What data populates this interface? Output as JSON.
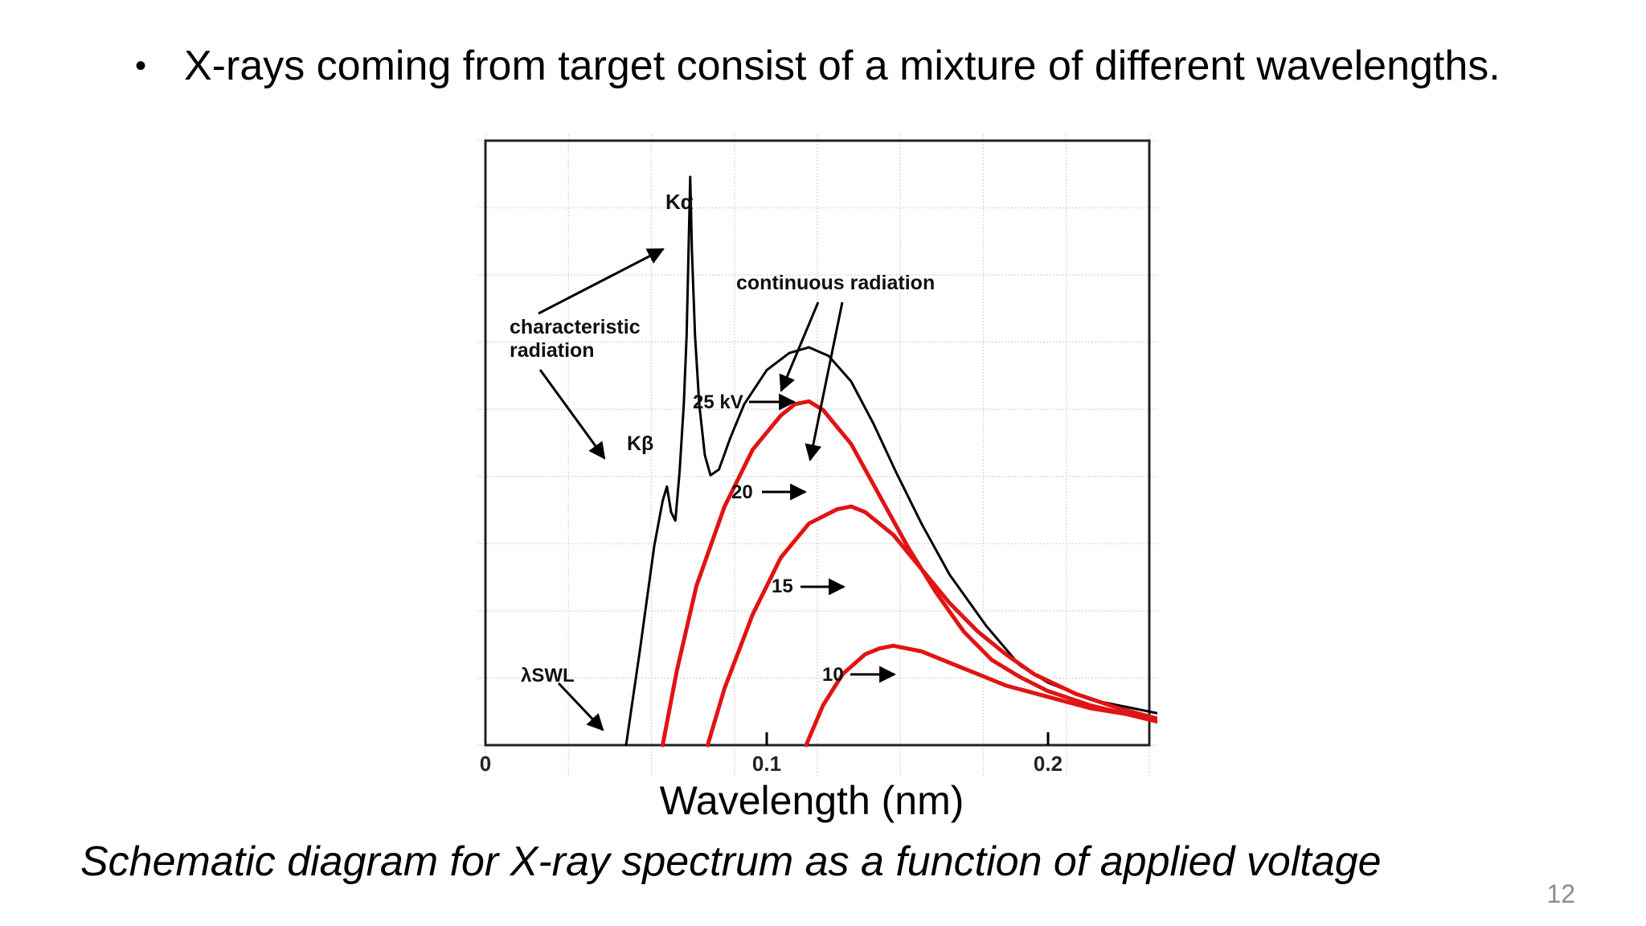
{
  "slide": {
    "bullet": "X-rays coming from target consist of a mixture of different wavelengths.",
    "caption": "Schematic diagram for X-ray spectrum as a function of applied voltage",
    "page_number": "12"
  },
  "chart_data": {
    "type": "line",
    "title": "",
    "xlabel": "Wavelength (nm)",
    "ylabel": "",
    "xlim": [
      0,
      0.24
    ],
    "ylim": [
      0,
      1
    ],
    "x_ticks": [
      "0",
      "0.1",
      "0.2"
    ],
    "grid": true,
    "series": [
      {
        "name": "25 kV",
        "color": "#000000",
        "points": [
          [
            0.05,
            0.0
          ],
          [
            0.055,
            0.17
          ],
          [
            0.06,
            0.35
          ],
          [
            0.063,
            0.43
          ],
          [
            0.0645,
            0.455
          ],
          [
            0.066,
            0.41
          ],
          [
            0.0675,
            0.395
          ],
          [
            0.069,
            0.48
          ],
          [
            0.0705,
            0.6
          ],
          [
            0.0715,
            0.72
          ],
          [
            0.0722,
            0.87
          ],
          [
            0.0728,
            1.0
          ],
          [
            0.0734,
            0.87
          ],
          [
            0.0745,
            0.72
          ],
          [
            0.076,
            0.6
          ],
          [
            0.078,
            0.51
          ],
          [
            0.08,
            0.475
          ],
          [
            0.083,
            0.485
          ],
          [
            0.087,
            0.54
          ],
          [
            0.092,
            0.6
          ],
          [
            0.1,
            0.66
          ],
          [
            0.108,
            0.69
          ],
          [
            0.115,
            0.7
          ],
          [
            0.122,
            0.685
          ],
          [
            0.13,
            0.64
          ],
          [
            0.138,
            0.565
          ],
          [
            0.146,
            0.48
          ],
          [
            0.155,
            0.39
          ],
          [
            0.165,
            0.3
          ],
          [
            0.178,
            0.21
          ],
          [
            0.19,
            0.14
          ],
          [
            0.2,
            0.11
          ],
          [
            0.215,
            0.08
          ],
          [
            0.24,
            0.055
          ]
        ]
      },
      {
        "name": "20",
        "color": "#e01414",
        "points": [
          [
            0.063,
            0.0
          ],
          [
            0.068,
            0.13
          ],
          [
            0.075,
            0.28
          ],
          [
            0.085,
            0.42
          ],
          [
            0.095,
            0.52
          ],
          [
            0.1,
            0.55
          ],
          [
            0.105,
            0.58
          ],
          [
            0.11,
            0.6
          ],
          [
            0.115,
            0.605
          ],
          [
            0.12,
            0.59
          ],
          [
            0.13,
            0.53
          ],
          [
            0.14,
            0.44
          ],
          [
            0.15,
            0.35
          ],
          [
            0.16,
            0.27
          ],
          [
            0.17,
            0.2
          ],
          [
            0.18,
            0.15
          ],
          [
            0.19,
            0.12
          ],
          [
            0.2,
            0.095
          ],
          [
            0.215,
            0.07
          ],
          [
            0.24,
            0.04
          ]
        ]
      },
      {
        "name": "15",
        "color": "#e01414",
        "points": [
          [
            0.079,
            0.0
          ],
          [
            0.085,
            0.1
          ],
          [
            0.095,
            0.23
          ],
          [
            0.105,
            0.33
          ],
          [
            0.115,
            0.39
          ],
          [
            0.125,
            0.415
          ],
          [
            0.13,
            0.42
          ],
          [
            0.135,
            0.41
          ],
          [
            0.145,
            0.37
          ],
          [
            0.155,
            0.31
          ],
          [
            0.165,
            0.25
          ],
          [
            0.175,
            0.2
          ],
          [
            0.185,
            0.16
          ],
          [
            0.195,
            0.125
          ],
          [
            0.21,
            0.09
          ],
          [
            0.225,
            0.065
          ],
          [
            0.24,
            0.045
          ]
        ]
      },
      {
        "name": "10",
        "color": "#e01414",
        "points": [
          [
            0.114,
            0.0
          ],
          [
            0.12,
            0.07
          ],
          [
            0.127,
            0.125
          ],
          [
            0.135,
            0.16
          ],
          [
            0.14,
            0.17
          ],
          [
            0.145,
            0.175
          ],
          [
            0.155,
            0.165
          ],
          [
            0.165,
            0.145
          ],
          [
            0.175,
            0.125
          ],
          [
            0.185,
            0.105
          ],
          [
            0.2,
            0.085
          ],
          [
            0.215,
            0.065
          ],
          [
            0.24,
            0.045
          ]
        ]
      }
    ],
    "annotations": {
      "k_alpha": "Kα",
      "k_beta": "Kβ",
      "characteristic_line1": "characteristic",
      "characteristic_line2": "radiation",
      "continuous": "continuous radiation",
      "lambda_swl": "λSWL",
      "label_25": "25 kV",
      "label_20": "20",
      "label_15": "15",
      "label_10": "10"
    }
  }
}
